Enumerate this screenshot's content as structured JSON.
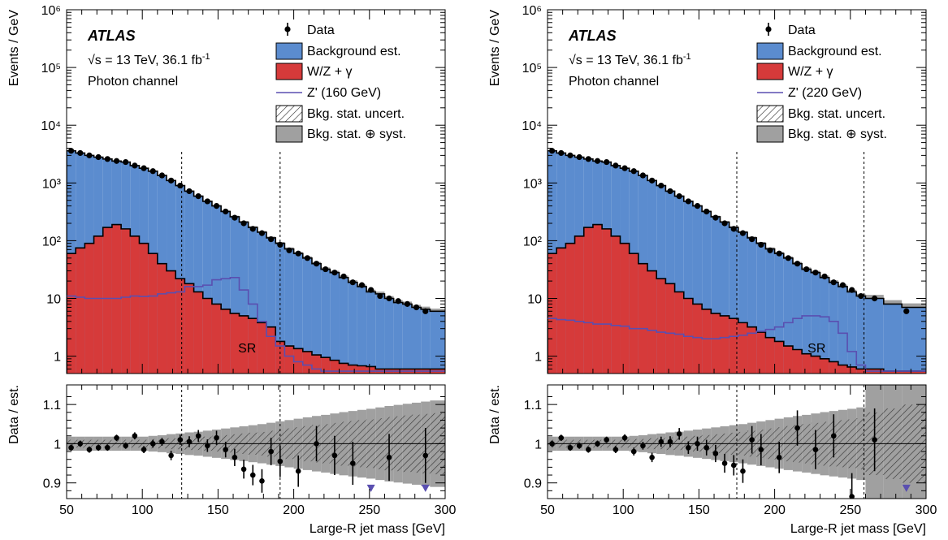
{
  "chart_data": [
    {
      "type": "histogram",
      "panel": "left",
      "label_atlas": "ATLAS",
      "label_energy": "√s = 13 TeV,  36.1 fb",
      "label_lumi_exp": "-1",
      "label_channel": "Photon channel",
      "sr_label": "SR",
      "ylabel_main": "Events / GeV",
      "ylabel_ratio": "Data / est.",
      "xlabel": "Large-R jet mass [GeV]",
      "xlim": [
        50,
        300
      ],
      "ylim_main": [
        0.5,
        1000000
      ],
      "y_scale": "log",
      "ylim_ratio": [
        0.86,
        1.15
      ],
      "x_ticks": [
        50,
        100,
        150,
        200,
        250,
        300
      ],
      "y_tick_labels": [
        "1",
        "10",
        "10²",
        "10³",
        "10⁴",
        "10⁵",
        "10⁶"
      ],
      "ratio_ticks": [
        0.9,
        1,
        1.1
      ],
      "sr_lines": [
        126,
        191
      ],
      "bin_edges": [
        50,
        56,
        62,
        68,
        74,
        80,
        86,
        92,
        98,
        104,
        110,
        116,
        122,
        128,
        134,
        140,
        146,
        152,
        158,
        164,
        170,
        176,
        182,
        188,
        194,
        200,
        206,
        212,
        218,
        224,
        230,
        236,
        242,
        248,
        254,
        260,
        266,
        272,
        278,
        284,
        290,
        300
      ],
      "background": [
        3600,
        3300,
        3000,
        2800,
        2600,
        2400,
        2300,
        2000,
        1800,
        1600,
        1350,
        1100,
        900,
        720,
        590,
        480,
        400,
        320,
        260,
        210,
        170,
        140,
        112,
        90,
        72,
        60,
        50,
        40,
        32,
        28,
        23,
        19,
        16,
        13,
        12,
        10,
        8.5,
        8,
        7,
        6.5,
        6
      ],
      "wz": [
        60,
        75,
        90,
        120,
        170,
        190,
        160,
        120,
        90,
        60,
        40,
        30,
        22,
        18,
        13,
        10,
        8,
        6.5,
        5.5,
        5,
        4.5,
        3.8,
        3.2,
        1.8,
        1.5,
        1.35,
        1.2,
        1.05,
        0.95,
        0.85,
        0.75,
        0.7,
        0.68,
        0.66,
        0.6,
        0.6,
        0.6,
        0.6,
        0.6,
        0.6,
        0.6
      ],
      "zprime_mass": "160",
      "zprime": [
        11,
        10.5,
        10,
        10,
        10,
        10,
        10.5,
        11,
        10.8,
        11,
        12,
        12.5,
        13,
        16,
        16,
        17,
        21,
        22,
        23,
        14,
        8,
        4,
        2.2,
        1.5,
        1,
        0.8,
        0.7,
        0.6,
        0.55,
        0.55,
        0.55,
        0.55,
        0.55,
        0.55,
        0.55,
        0.55,
        0.55,
        0.55,
        0.55,
        0.55,
        0.55
      ],
      "data_x": [
        53,
        59,
        65,
        71,
        77,
        83,
        89,
        95,
        101,
        107,
        113,
        119,
        125,
        131,
        137,
        143,
        149,
        155,
        161,
        167,
        173,
        179,
        185,
        191,
        197,
        203,
        209,
        215,
        221,
        227,
        233,
        239,
        245,
        251,
        257,
        263,
        269,
        275,
        281,
        287
      ],
      "data": [
        3600,
        3300,
        3000,
        2800,
        2600,
        2400,
        2300,
        2000,
        1800,
        1600,
        1350,
        1100,
        900,
        720,
        590,
        480,
        400,
        320,
        250,
        200,
        160,
        135,
        106,
        85,
        68,
        60,
        50,
        40,
        32,
        28,
        24,
        19,
        17,
        14,
        11,
        10,
        9,
        8,
        7,
        6
      ],
      "ratio": [
        0.99,
        1.0,
        0.985,
        0.99,
        0.99,
        1.015,
        0.995,
        1.02,
        0.985,
        1.0,
        1.005,
        0.97,
        1.01,
        1.005,
        1.02,
        0.995,
        1.015,
        0.985,
        0.965,
        0.935,
        0.92,
        0.905,
        0.98,
        0.955,
        0.93,
        1.0,
        0.97,
        0.95,
        0.965,
        0.97
      ],
      "ratio_x": [
        53,
        59,
        65,
        71,
        77,
        83,
        89,
        95,
        101,
        107,
        113,
        119,
        125,
        131,
        137,
        143,
        149,
        155,
        161,
        167,
        173,
        179,
        185,
        191,
        203,
        215,
        227,
        239,
        263,
        287
      ],
      "ratio_err": [
        0.008,
        0.008,
        0.008,
        0.008,
        0.008,
        0.008,
        0.008,
        0.009,
        0.009,
        0.01,
        0.01,
        0.012,
        0.013,
        0.014,
        0.015,
        0.016,
        0.018,
        0.02,
        0.022,
        0.024,
        0.026,
        0.03,
        0.035,
        0.04,
        0.04,
        0.045,
        0.05,
        0.055,
        0.06,
        0.07
      ],
      "arrow_x": [
        251,
        287
      ],
      "stat_unc": [
        0.01,
        0.01,
        0.01,
        0.01,
        0.01,
        0.01,
        0.01,
        0.01,
        0.01,
        0.012,
        0.012,
        0.014,
        0.014,
        0.016,
        0.016,
        0.018,
        0.02,
        0.022,
        0.024,
        0.026,
        0.028,
        0.03,
        0.033,
        0.036,
        0.039,
        0.042,
        0.045,
        0.048,
        0.05,
        0.053,
        0.056,
        0.058,
        0.06,
        0.062,
        0.065,
        0.068,
        0.07,
        0.072,
        0.074,
        0.076,
        0.078
      ],
      "syst_unc": [
        0.015,
        0.015,
        0.015,
        0.015,
        0.015,
        0.015,
        0.015,
        0.015,
        0.015,
        0.016,
        0.018,
        0.02,
        0.022,
        0.024,
        0.026,
        0.028,
        0.03,
        0.032,
        0.034,
        0.036,
        0.038,
        0.04,
        0.042,
        0.044,
        0.046,
        0.048,
        0.05,
        0.052,
        0.054,
        0.056,
        0.058,
        0.06,
        0.062,
        0.064,
        0.066,
        0.068,
        0.07,
        0.072,
        0.074,
        0.076,
        0.078
      ],
      "legend": {
        "data": "Data",
        "bkg": "Background est.",
        "wz": "W/Z + γ",
        "zprime": "Z' (160 GeV)",
        "stat": "Bkg. stat. uncert.",
        "syst": "Bkg. stat. ⊕ syst."
      }
    },
    {
      "type": "histogram",
      "panel": "right",
      "label_atlas": "ATLAS",
      "label_energy": "√s = 13 TeV,  36.1 fb",
      "label_lumi_exp": "-1",
      "label_channel": "Photon channel",
      "sr_label": "SR",
      "ylabel_main": "Events / GeV",
      "ylabel_ratio": "Data / est.",
      "xlabel": "Large-R jet mass [GeV]",
      "xlim": [
        50,
        300
      ],
      "ylim_main": [
        0.5,
        1000000
      ],
      "y_scale": "log",
      "ylim_ratio": [
        0.86,
        1.15
      ],
      "x_ticks": [
        50,
        100,
        150,
        200,
        250,
        300
      ],
      "y_tick_labels": [
        "1",
        "10",
        "10²",
        "10³",
        "10⁴",
        "10⁵",
        "10⁶"
      ],
      "ratio_ticks": [
        0.9,
        1,
        1.1
      ],
      "sr_lines": [
        175,
        259
      ],
      "bin_edges": [
        50,
        56,
        62,
        68,
        74,
        80,
        86,
        92,
        98,
        104,
        110,
        116,
        122,
        128,
        134,
        140,
        146,
        152,
        158,
        164,
        170,
        176,
        182,
        188,
        194,
        200,
        206,
        212,
        218,
        224,
        230,
        236,
        242,
        248,
        254,
        260,
        272,
        284,
        300
      ],
      "background": [
        3600,
        3300,
        3000,
        2800,
        2600,
        2400,
        2300,
        2000,
        1800,
        1600,
        1350,
        1100,
        900,
        720,
        590,
        480,
        400,
        320,
        260,
        210,
        170,
        140,
        112,
        90,
        72,
        60,
        50,
        40,
        32,
        28,
        23,
        19,
        16,
        13,
        11,
        10,
        8,
        7
      ],
      "wz": [
        60,
        75,
        90,
        120,
        170,
        190,
        160,
        120,
        90,
        60,
        40,
        30,
        22,
        18,
        13,
        10,
        8,
        6.5,
        5.5,
        5,
        4.5,
        3.8,
        3.2,
        2.6,
        2.1,
        1.8,
        1.5,
        1.3,
        1.1,
        1,
        0.9,
        0.8,
        0.7,
        0.65,
        0.6,
        0.6,
        0.55,
        0.55
      ],
      "zprime_mass": "220",
      "zprime": [
        4.5,
        4.3,
        4.2,
        4.0,
        3.8,
        3.6,
        3.6,
        3.4,
        3.3,
        3.0,
        3.0,
        2.8,
        2.6,
        2.5,
        2.4,
        2.2,
        2.1,
        2.0,
        2.0,
        2.1,
        2.2,
        2.3,
        2.5,
        2.7,
        2.9,
        3.2,
        3.8,
        4.5,
        5.0,
        5.0,
        4.8,
        4.0,
        2.5,
        1.2,
        0.7,
        0.55,
        0.55,
        0.55
      ],
      "data_x": [
        53,
        59,
        65,
        71,
        77,
        83,
        89,
        95,
        101,
        107,
        113,
        119,
        125,
        131,
        137,
        143,
        149,
        155,
        161,
        167,
        173,
        179,
        185,
        191,
        197,
        203,
        209,
        215,
        221,
        227,
        233,
        239,
        245,
        251,
        257,
        266,
        287
      ],
      "data": [
        3600,
        3300,
        3000,
        2800,
        2600,
        2400,
        2300,
        2000,
        1800,
        1600,
        1350,
        1100,
        900,
        720,
        590,
        480,
        400,
        320,
        250,
        200,
        160,
        135,
        106,
        85,
        68,
        60,
        50,
        40,
        32,
        28,
        24,
        19,
        17,
        14,
        11,
        10,
        6
      ],
      "ratio": [
        1.0,
        1.015,
        0.99,
        0.995,
        0.985,
        1.0,
        1.01,
        0.985,
        1.015,
        0.98,
        0.995,
        0.965,
        1.005,
        1.005,
        1.025,
        0.99,
        1.0,
        0.99,
        0.975,
        0.95,
        0.945,
        0.93,
        1.01,
        0.985,
        0.965,
        1.04,
        0.985,
        1.02,
        0.865,
        1.01
      ],
      "ratio_x": [
        53,
        59,
        65,
        71,
        77,
        83,
        89,
        95,
        101,
        107,
        113,
        119,
        125,
        131,
        137,
        143,
        149,
        155,
        161,
        167,
        173,
        179,
        185,
        191,
        203,
        215,
        227,
        239,
        251,
        266
      ],
      "ratio_err": [
        0.008,
        0.008,
        0.008,
        0.008,
        0.008,
        0.008,
        0.008,
        0.009,
        0.009,
        0.01,
        0.01,
        0.012,
        0.013,
        0.014,
        0.015,
        0.016,
        0.018,
        0.02,
        0.022,
        0.024,
        0.026,
        0.03,
        0.035,
        0.04,
        0.04,
        0.045,
        0.05,
        0.055,
        0.06,
        0.08
      ],
      "arrow_x": [
        287
      ],
      "stat_unc": [
        0.01,
        0.01,
        0.01,
        0.01,
        0.01,
        0.01,
        0.01,
        0.01,
        0.01,
        0.012,
        0.012,
        0.014,
        0.014,
        0.016,
        0.016,
        0.018,
        0.02,
        0.022,
        0.024,
        0.026,
        0.028,
        0.03,
        0.033,
        0.036,
        0.039,
        0.042,
        0.045,
        0.048,
        0.05,
        0.053,
        0.056,
        0.058,
        0.06,
        0.062,
        0.065,
        0.08,
        0.09,
        0.1
      ],
      "syst_unc": [
        0.015,
        0.015,
        0.015,
        0.015,
        0.015,
        0.015,
        0.015,
        0.015,
        0.015,
        0.016,
        0.018,
        0.02,
        0.022,
        0.024,
        0.026,
        0.028,
        0.03,
        0.032,
        0.034,
        0.036,
        0.038,
        0.04,
        0.042,
        0.044,
        0.046,
        0.048,
        0.05,
        0.052,
        0.054,
        0.056,
        0.058,
        0.06,
        0.062,
        0.064,
        0.066,
        0.13,
        0.14,
        0.14
      ],
      "legend": {
        "data": "Data",
        "bkg": "Background est.",
        "wz": "W/Z + γ",
        "zprime": "Z' (220 GeV)",
        "stat": "Bkg. stat. uncert.",
        "syst": "Bkg. stat. ⊕ syst."
      }
    }
  ],
  "colors": {
    "background": "#5b8ccf",
    "wz": "#d63a3a",
    "zprime": "#5a4fb0",
    "syst": "#a0a0a0",
    "data": "#000000"
  }
}
